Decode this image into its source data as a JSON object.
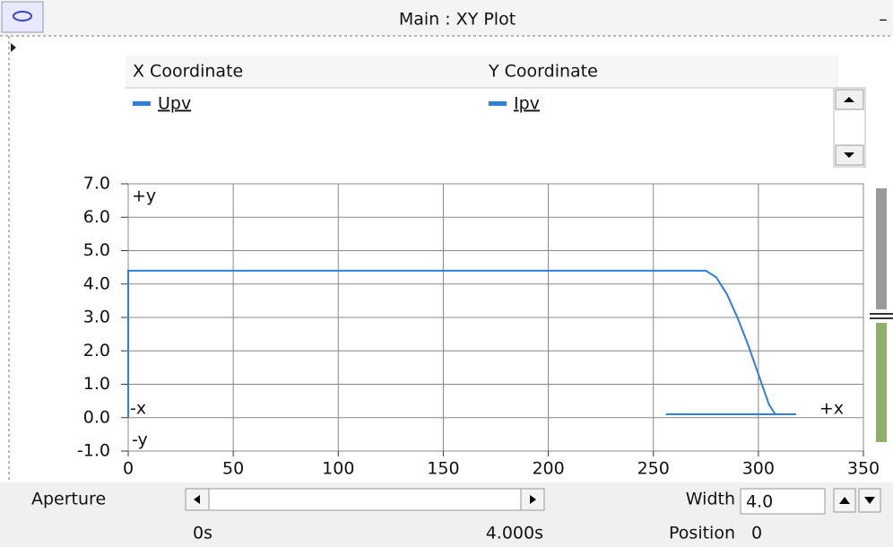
{
  "window": {
    "title": "Main : XY Plot"
  },
  "legend": {
    "x_header": "X Coordinate",
    "y_header": "Y Coordinate"
  },
  "chart_data": {
    "type": "line",
    "xlabel": "Upv",
    "x": [
      0,
      0,
      275,
      280,
      285,
      290,
      295,
      300,
      305,
      308,
      318,
      256
    ],
    "series": [
      {
        "name": "Ipv",
        "color": "#2f7fd8",
        "values": [
          0,
          4.4,
          4.4,
          4.2,
          3.7,
          3.0,
          2.2,
          1.3,
          0.4,
          0.1,
          0.1,
          0.1
        ]
      }
    ],
    "xlim": [
      0,
      350
    ],
    "xticks": [
      0,
      50,
      100,
      150,
      200,
      250,
      300,
      350
    ],
    "ylim": [
      -1,
      7
    ],
    "yticks": [
      {
        "value": -1,
        "label": "-1.0"
      },
      {
        "value": 0,
        "label": "0.0"
      },
      {
        "value": 1,
        "label": "1.0"
      },
      {
        "value": 2,
        "label": "2.0"
      },
      {
        "value": 3,
        "label": "3.0"
      },
      {
        "value": 4,
        "label": "4.0"
      },
      {
        "value": 5,
        "label": "5.0"
      },
      {
        "value": 6,
        "label": "6.0"
      },
      {
        "value": 7,
        "label": "7.0"
      }
    ],
    "grid": true,
    "corner_labels": [
      "+y",
      "-x",
      "+x",
      "-y"
    ]
  },
  "controls": {
    "aperture": "Aperture",
    "start": "0s",
    "end": "4.000s",
    "width_label": "Width",
    "width_value": "4.0",
    "position_label": "Position",
    "position_value": "0"
  }
}
